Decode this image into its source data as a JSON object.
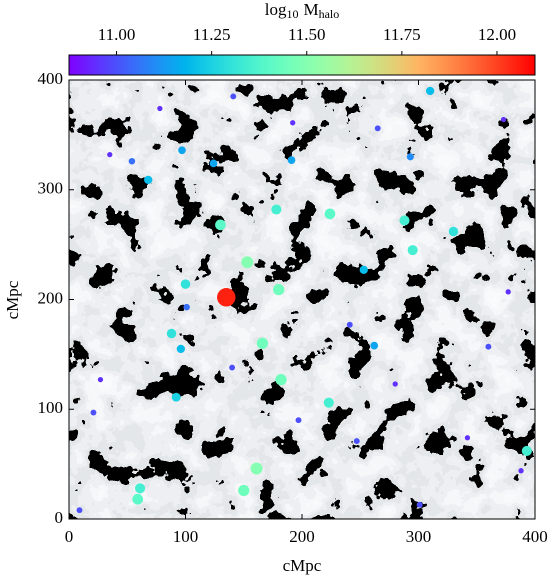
{
  "chart_data": {
    "type": "scatter",
    "xlabel": "cMpc",
    "ylabel": "cMpc",
    "colorbar_label": [
      "log",
      "10",
      "M",
      "halo"
    ],
    "colormap": "rainbow",
    "clim": [
      10.875,
      12.1
    ],
    "cticks": [
      {
        "value": 11,
        "label": "11.00"
      },
      {
        "value": 11.25,
        "label": "11.25"
      },
      {
        "value": 11.5,
        "label": "11.50"
      },
      {
        "value": 11.75,
        "label": "11.75"
      },
      {
        "value": 12,
        "label": "12.00"
      }
    ],
    "xlim": [
      0,
      400
    ],
    "ylim": [
      0,
      400
    ],
    "xticks": [
      0,
      100,
      200,
      300,
      400
    ],
    "yticks": [
      0,
      100,
      200,
      300,
      400
    ],
    "x": [
      135,
      153,
      166,
      180,
      224,
      130,
      178,
      182,
      161,
      150,
      59,
      61,
      393,
      295,
      288,
      92,
      223,
      96,
      88,
      100,
      330,
      310,
      68,
      124,
      97,
      54,
      191,
      293,
      253,
      262,
      197,
      342,
      301,
      247,
      21,
      35,
      9,
      373,
      141,
      78,
      377,
      27,
      360,
      192,
      241,
      101,
      140,
      280,
      265,
      388
    ],
    "y": [
      202,
      234,
      160,
      209,
      278,
      268,
      282,
      127,
      46,
      26,
      18,
      28,
      62,
      245,
      272,
      111,
      106,
      155,
      169,
      214,
      262,
      390,
      309,
      324,
      336,
      326,
      327,
      330,
      227,
      158,
      90,
      74,
      13,
      71,
      97,
      332,
      8,
      364,
      385,
      374,
      207,
      127,
      157,
      361,
      177,
      193,
      138,
      123,
      356,
      44
    ],
    "mass": [
      12.05,
      11.5,
      11.45,
      11.45,
      11.4,
      11.4,
      11.35,
      11.45,
      11.5,
      11.45,
      11.4,
      11.35,
      11.35,
      11.35,
      11.35,
      11.25,
      11.35,
      11.2,
      11.3,
      11.3,
      11.3,
      11.2,
      11.2,
      11.15,
      11.15,
      11.05,
      11.15,
      11.1,
      11.2,
      11.15,
      11.0,
      10.95,
      11.0,
      11.0,
      11.0,
      10.95,
      11.0,
      10.95,
      11.0,
      10.95,
      10.95,
      10.95,
      11.0,
      10.95,
      11.0,
      11.05,
      11.0,
      10.95,
      11.0,
      10.95
    ]
  }
}
